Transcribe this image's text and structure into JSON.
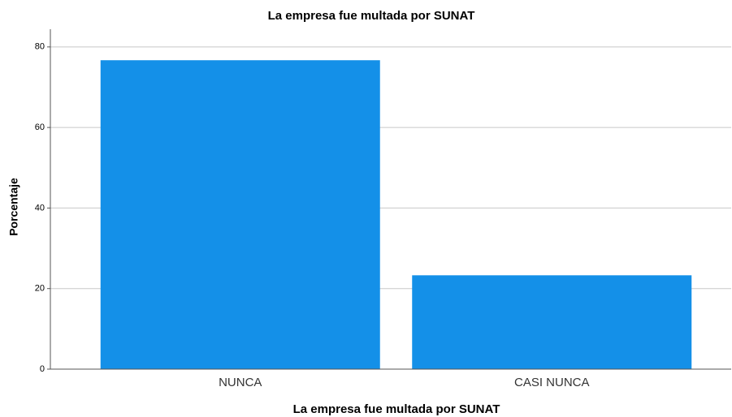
{
  "chart_data": {
    "type": "bar",
    "title": "La empresa fue multada por SUNAT",
    "x_label": "La empresa fue multada por SUNAT",
    "y_label": "Porcentaje",
    "categories": [
      "NUNCA",
      "CASI NUNCA"
    ],
    "values": [
      76.7,
      23.3
    ],
    "color": "#1490e8",
    "ylim": [
      0,
      84.4
    ],
    "yticks": [
      0,
      20,
      40,
      60,
      80
    ],
    "grid": true
  }
}
